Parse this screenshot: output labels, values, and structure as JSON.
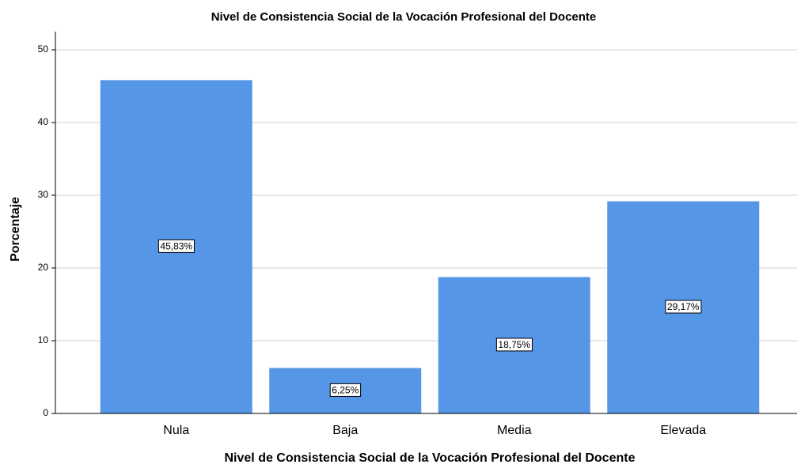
{
  "chart_data": {
    "type": "bar",
    "title": "Nivel de Consistencia Social de la Vocación Profesional del Docente",
    "x_label": "Nivel de Consistencia Social de la Vocación Profesional del Docente",
    "y_label": "Porcentaje",
    "categories": [
      "Nula",
      "Baja",
      "Media",
      "Elevada"
    ],
    "values": [
      45.83,
      6.25,
      18.75,
      29.17
    ],
    "value_labels": [
      "45,83%",
      "6,25%",
      "18,75%",
      "29,17%"
    ],
    "color": "#5596e6",
    "ylim": [
      0,
      52.5
    ],
    "yticks": [
      0,
      10,
      20,
      30,
      40,
      50
    ],
    "grid": true
  }
}
